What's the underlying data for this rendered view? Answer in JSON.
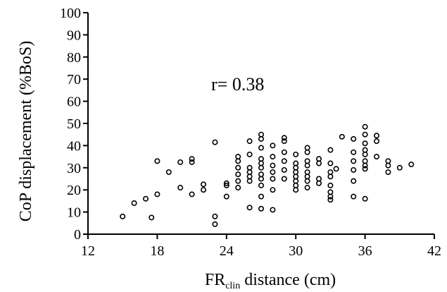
{
  "chart_data": {
    "type": "scatter",
    "title": "",
    "xlabel": {
      "main": "FR",
      "subscript": "clin",
      "rest": " distance (cm)"
    },
    "ylabel": "CoP displacement (%BoS)",
    "xlim": [
      12,
      42
    ],
    "ylim": [
      0,
      100
    ],
    "xticks": [
      12,
      18,
      24,
      30,
      36,
      42
    ],
    "yticks": [
      0,
      10,
      20,
      30,
      40,
      50,
      60,
      70,
      80,
      90,
      100
    ],
    "grid": false,
    "annotation": "r= 0.38",
    "points": [
      [
        15,
        8
      ],
      [
        16,
        14
      ],
      [
        17,
        16
      ],
      [
        17.5,
        7.5
      ],
      [
        18,
        18
      ],
      [
        18,
        33
      ],
      [
        19,
        28
      ],
      [
        20,
        21
      ],
      [
        20,
        32.5
      ],
      [
        21,
        18
      ],
      [
        21,
        32.5
      ],
      [
        21,
        34
      ],
      [
        22,
        20
      ],
      [
        22,
        22.5
      ],
      [
        23,
        41.5
      ],
      [
        23,
        8
      ],
      [
        23,
        4.5
      ],
      [
        24,
        17
      ],
      [
        24,
        22
      ],
      [
        24,
        23
      ],
      [
        25,
        35
      ],
      [
        25,
        33
      ],
      [
        25,
        30
      ],
      [
        25,
        27
      ],
      [
        25,
        24
      ],
      [
        25,
        21
      ],
      [
        26,
        42
      ],
      [
        26,
        36
      ],
      [
        26,
        30
      ],
      [
        26,
        28
      ],
      [
        26,
        26
      ],
      [
        26,
        24
      ],
      [
        26,
        12
      ],
      [
        27,
        45
      ],
      [
        27,
        43
      ],
      [
        27,
        39
      ],
      [
        27,
        34
      ],
      [
        27,
        32
      ],
      [
        27,
        30
      ],
      [
        27,
        27
      ],
      [
        27,
        25
      ],
      [
        27,
        22
      ],
      [
        27,
        17
      ],
      [
        27,
        11.5
      ],
      [
        28,
        40
      ],
      [
        28,
        35
      ],
      [
        28,
        31
      ],
      [
        28,
        28
      ],
      [
        28,
        25
      ],
      [
        28,
        20
      ],
      [
        28,
        11
      ],
      [
        29,
        43.5
      ],
      [
        29,
        42
      ],
      [
        29,
        37
      ],
      [
        29,
        33
      ],
      [
        29,
        29
      ],
      [
        29,
        25
      ],
      [
        30,
        36
      ],
      [
        30,
        32
      ],
      [
        30,
        30
      ],
      [
        30,
        28
      ],
      [
        30,
        26
      ],
      [
        30,
        24
      ],
      [
        30,
        22
      ],
      [
        30,
        20
      ],
      [
        31,
        39
      ],
      [
        31,
        37
      ],
      [
        31,
        33
      ],
      [
        31,
        31
      ],
      [
        31,
        28
      ],
      [
        31,
        26
      ],
      [
        31,
        24
      ],
      [
        31,
        21
      ],
      [
        32,
        34
      ],
      [
        32,
        32
      ],
      [
        32,
        25
      ],
      [
        32,
        23
      ],
      [
        33,
        38
      ],
      [
        33,
        32
      ],
      [
        33,
        28
      ],
      [
        33,
        26
      ],
      [
        33,
        22
      ],
      [
        33,
        19
      ],
      [
        33,
        17
      ],
      [
        33,
        15.5
      ],
      [
        33.5,
        29.5
      ],
      [
        34,
        44
      ],
      [
        35,
        43
      ],
      [
        35,
        37
      ],
      [
        35,
        33
      ],
      [
        35,
        29
      ],
      [
        35,
        24
      ],
      [
        35,
        17
      ],
      [
        36,
        48.5
      ],
      [
        36,
        45
      ],
      [
        36,
        41
      ],
      [
        36,
        38
      ],
      [
        36,
        36
      ],
      [
        36,
        33
      ],
      [
        36,
        31
      ],
      [
        36,
        29.5
      ],
      [
        36,
        16
      ],
      [
        37,
        44.5
      ],
      [
        37,
        42
      ],
      [
        37,
        35
      ],
      [
        38,
        33
      ],
      [
        38,
        31
      ],
      [
        38,
        28
      ],
      [
        39,
        30
      ],
      [
        40,
        31.5
      ]
    ]
  }
}
